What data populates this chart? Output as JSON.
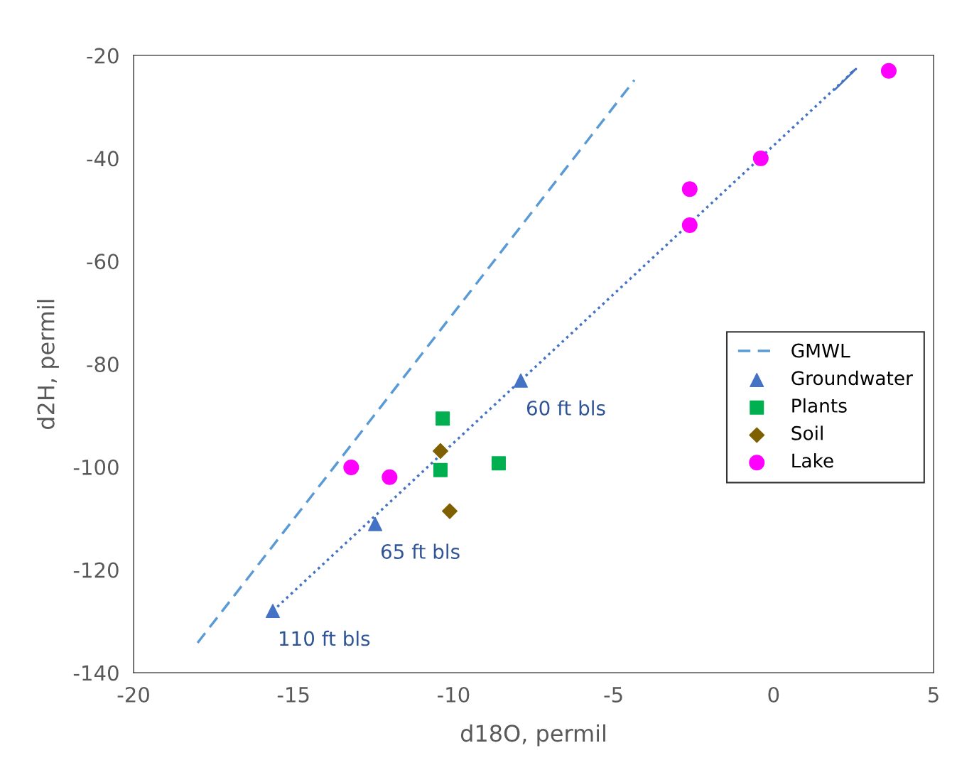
{
  "chart_data": {
    "type": "scatter",
    "xlabel": "d18O, permil",
    "ylabel": "d2H, permil",
    "xlim": [
      -20,
      5
    ],
    "xticks": [
      -20,
      -15,
      -10,
      -5,
      0,
      5
    ],
    "ylim": [
      -140,
      -20
    ],
    "yticks": [
      -140,
      -120,
      -100,
      -80,
      -60,
      -40,
      -20
    ],
    "grid": false,
    "legend": "right",
    "series": [
      {
        "name": "GMWL",
        "type": "line",
        "x": [
          -18.0,
          -4.35
        ],
        "values": [
          -134.2,
          -24.8
        ],
        "color": "#5b9bd5",
        "line_style": "dashed",
        "marker": "none"
      },
      {
        "name": "Groundwater",
        "x": [
          -15.65,
          -12.45,
          -7.9
        ],
        "values": [
          -128.0,
          -111.1,
          -83.2
        ],
        "color": "#4472c4",
        "marker": "triangle"
      },
      {
        "name": "Plants",
        "x": [
          -10.34,
          -10.41,
          -8.59
        ],
        "values": [
          -90.6,
          -100.6,
          -99.3
        ],
        "color": "#00b050",
        "marker": "square"
      },
      {
        "name": "Soil",
        "x": [
          -10.41,
          -10.12
        ],
        "values": [
          -96.9,
          -108.6
        ],
        "color": "#7f6000",
        "marker": "diamond"
      },
      {
        "name": "Lake",
        "x": [
          3.6,
          -0.4,
          -2.62,
          -2.62,
          -13.2,
          -12.0
        ],
        "values": [
          -23.0,
          -40.0,
          -46.0,
          -53.0,
          -100.1,
          -102.0
        ],
        "color": "#ff00ff",
        "marker": "circle"
      },
      {
        "type": "line",
        "x": [
          -15.65,
          2.58
        ],
        "values": [
          -128.0,
          -22.6
        ],
        "color": "#4472c4",
        "line_style": "dotted",
        "marker": "none"
      }
    ],
    "annotations": [
      {
        "text": "60 ft bls",
        "x": -7.9,
        "y": -83.2
      },
      {
        "text": "65 ft bls",
        "x": -12.45,
        "y": -111.1
      },
      {
        "text": "110 ft bls",
        "x": -15.65,
        "y": -128.0
      }
    ]
  }
}
